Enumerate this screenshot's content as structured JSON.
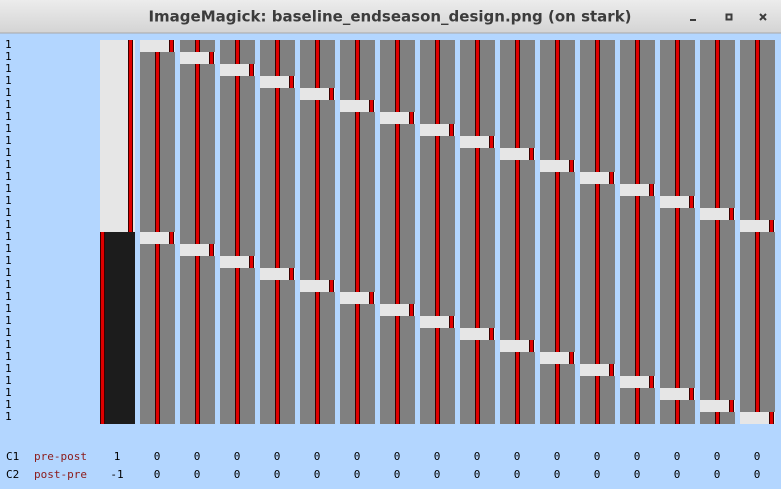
{
  "window": {
    "title": "ImageMagick: baseline_endseason_design.png (on stark)"
  },
  "row_labels": [
    "1",
    "1",
    "1",
    "1",
    "1",
    "1",
    "1",
    "1",
    "1",
    "1",
    "1",
    "1",
    "1",
    "1",
    "1",
    "1",
    "1",
    "1",
    "1",
    "1",
    "1",
    "1",
    "1",
    "1",
    "1",
    "1",
    "1",
    "1",
    "1",
    "1",
    "1",
    "1"
  ],
  "contrasts": [
    {
      "id": "C1",
      "name": "pre-post",
      "values": [
        1,
        0,
        0,
        0,
        0,
        0,
        0,
        0,
        0,
        0,
        0,
        0,
        0,
        0,
        0,
        0,
        0
      ]
    },
    {
      "id": "C2",
      "name": "post-pre",
      "values": [
        -1,
        0,
        0,
        0,
        0,
        0,
        0,
        0,
        0,
        0,
        0,
        0,
        0,
        0,
        0,
        0,
        0
      ]
    }
  ]
}
